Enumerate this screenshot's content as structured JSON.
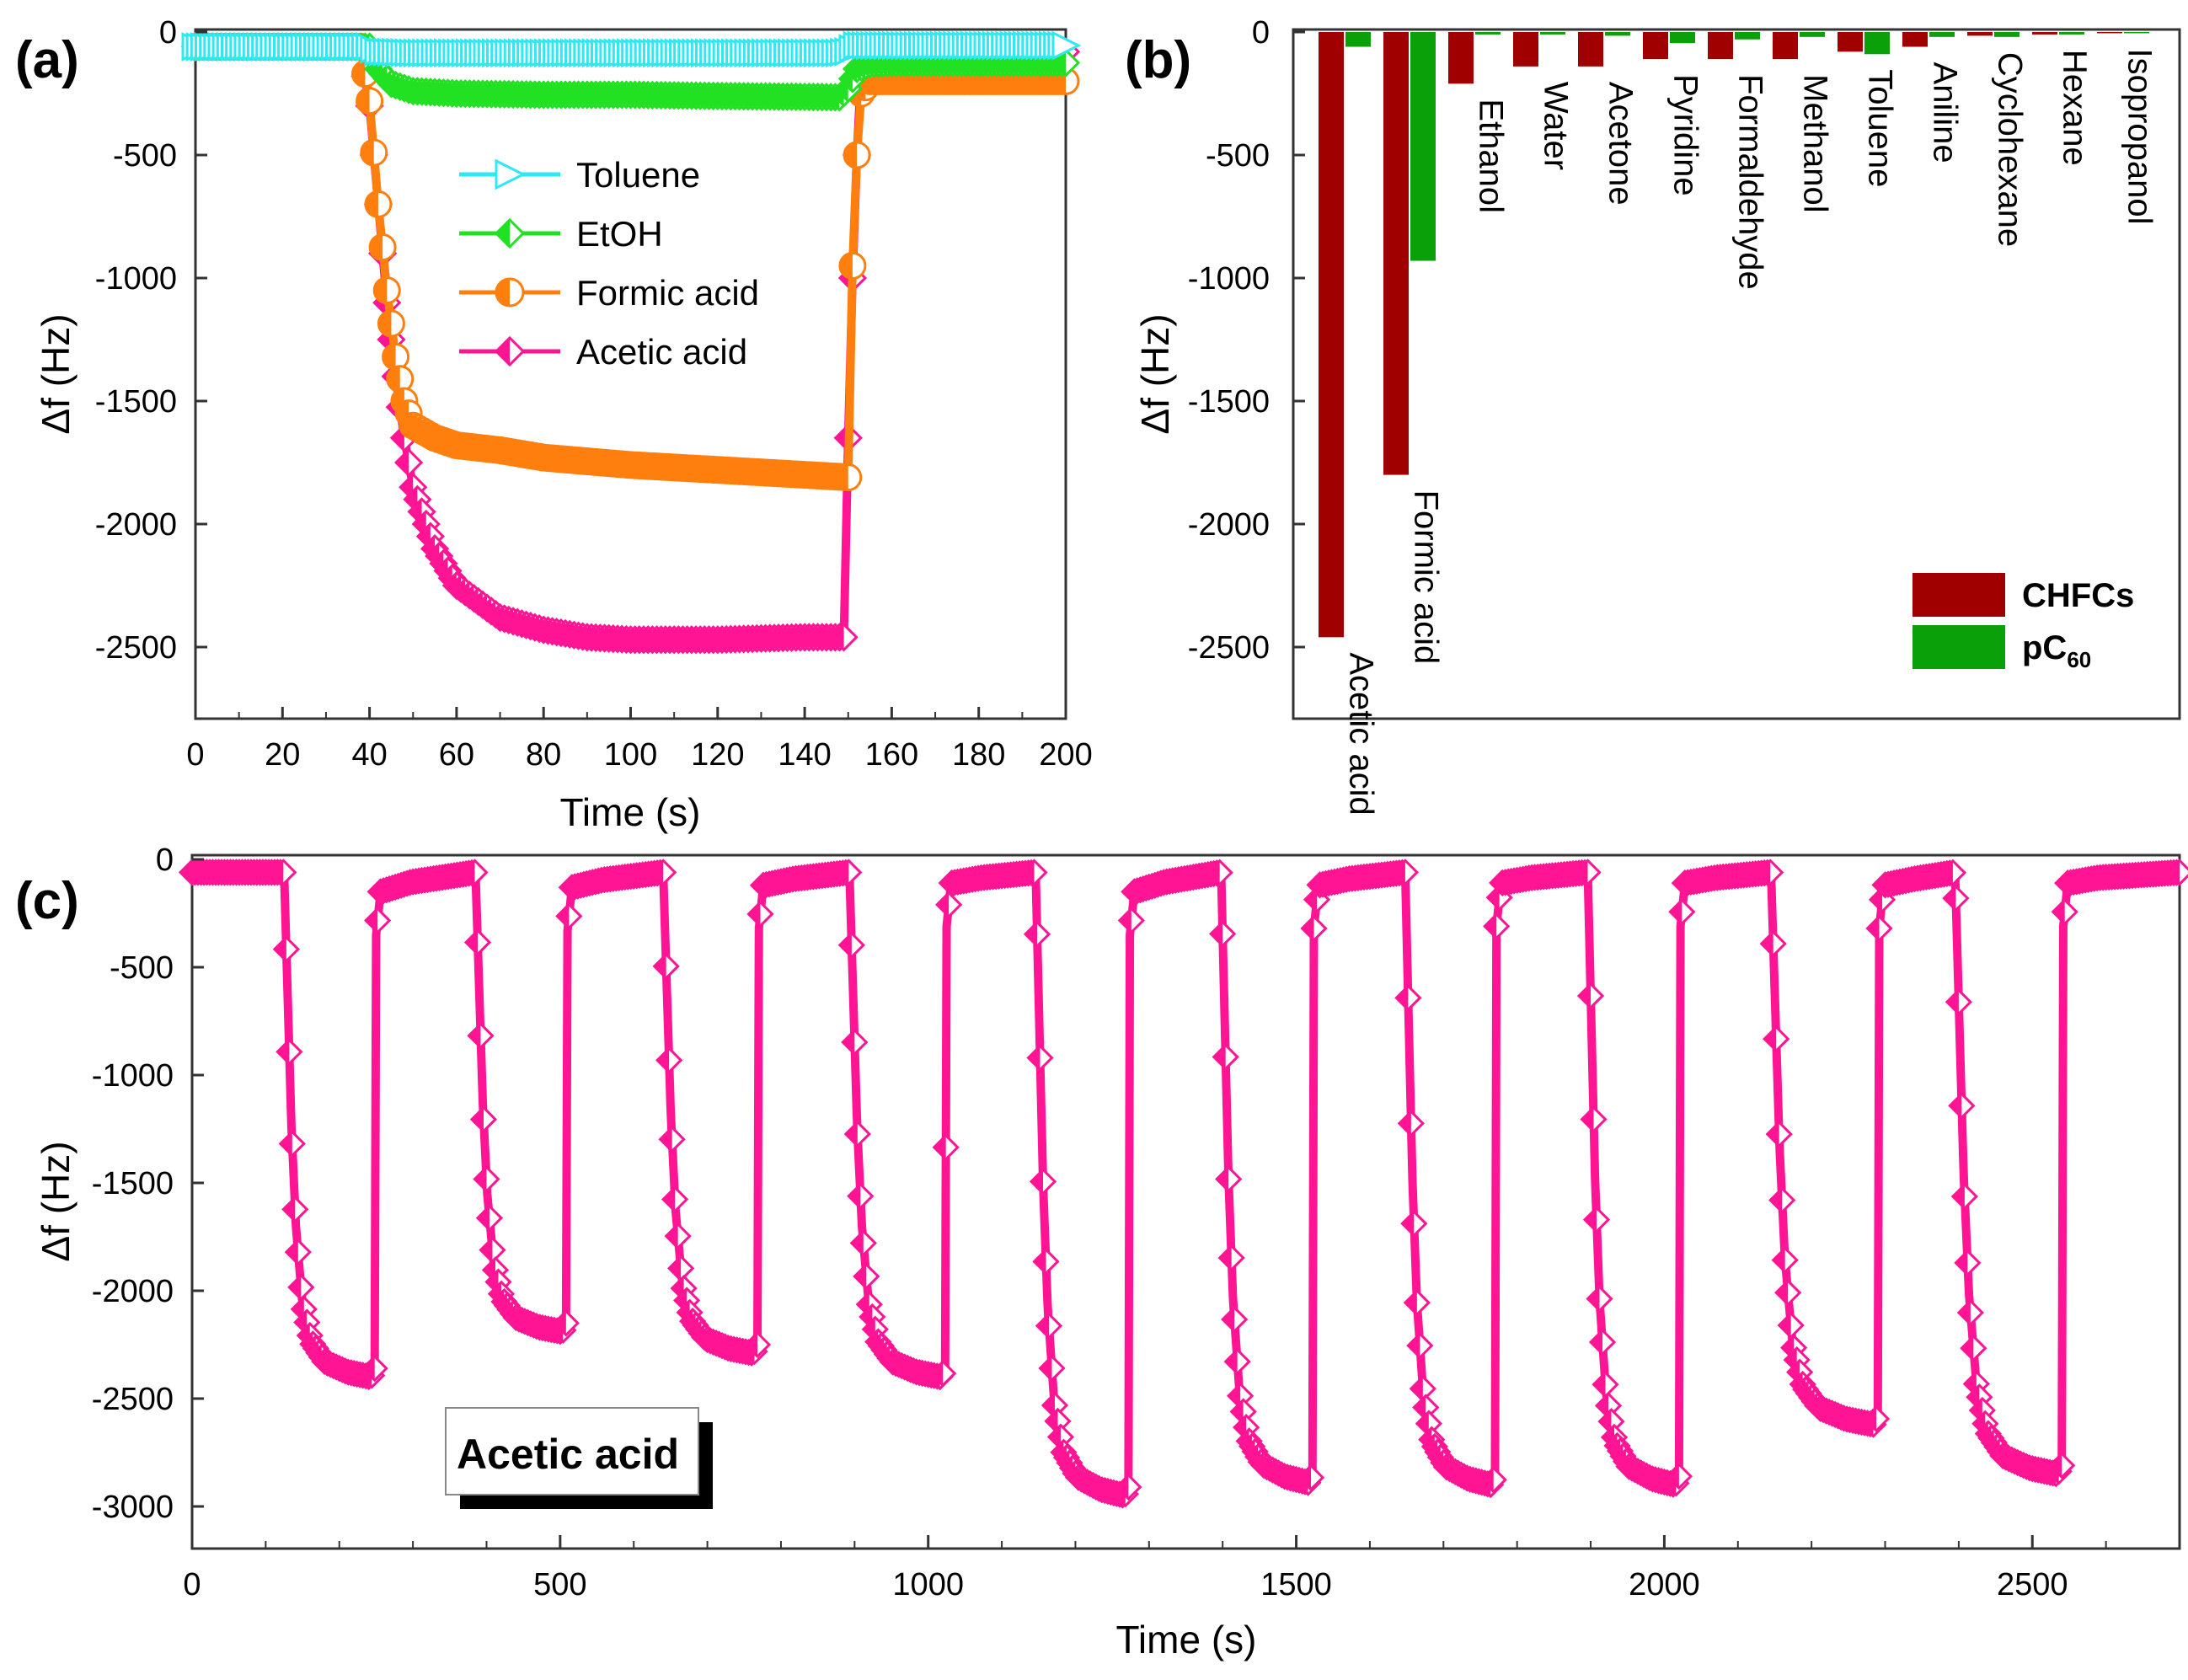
{
  "panels": {
    "a": {
      "label": "(a)"
    },
    "b": {
      "label": "(b)"
    },
    "c": {
      "label": "(c)"
    }
  },
  "chart_data": [
    {
      "id": "a",
      "type": "line",
      "xlabel": "Time (s)",
      "ylabel": "Δf (Hz)",
      "xlim": [
        0,
        200
      ],
      "ylim": [
        -2800,
        0
      ],
      "xticks": [
        0,
        20,
        40,
        60,
        80,
        100,
        120,
        140,
        160,
        180,
        200
      ],
      "yticks": [
        0,
        -500,
        -1000,
        -1500,
        -2000,
        -2500
      ],
      "legend_position": "top-center",
      "series": [
        {
          "name": "Toluene",
          "color": "#2ee8f2",
          "marker": "triangle-right",
          "x": [
            0,
            40,
            42,
            50,
            100,
            148,
            150,
            152,
            160,
            200
          ],
          "y": [
            -60,
            -60,
            -80,
            -85,
            -85,
            -85,
            -80,
            -55,
            -55,
            -55
          ]
        },
        {
          "name": "EtOH",
          "color": "#22e022",
          "marker": "diamond-half",
          "x": [
            0,
            40,
            42,
            45,
            50,
            60,
            80,
            100,
            120,
            148,
            150,
            152,
            155,
            160,
            180,
            200
          ],
          "y": [
            -60,
            -60,
            -150,
            -210,
            -240,
            -250,
            -255,
            -255,
            -260,
            -265,
            -230,
            -150,
            -130,
            -125,
            -125,
            -125
          ]
        },
        {
          "name": "Formic acid",
          "color": "#ff7f0e",
          "marker": "circle-half",
          "x": [
            0,
            38,
            40,
            42,
            44,
            46,
            48,
            50,
            55,
            60,
            70,
            80,
            100,
            120,
            140,
            150,
            151,
            152,
            153,
            155,
            160,
            180,
            200
          ],
          "y": [
            -60,
            -60,
            -280,
            -700,
            -1050,
            -1320,
            -1500,
            -1600,
            -1650,
            -1680,
            -1700,
            -1730,
            -1760,
            -1780,
            -1800,
            -1810,
            -950,
            -500,
            -250,
            -200,
            -200,
            -200,
            -200
          ]
        },
        {
          "name": "Acetic acid",
          "color": "#ff1493",
          "marker": "diamond-half",
          "x": [
            0,
            38,
            40,
            42,
            44,
            46,
            48,
            50,
            55,
            60,
            70,
            80,
            90,
            100,
            120,
            140,
            149,
            150,
            151,
            152,
            153,
            155,
            200
          ],
          "y": [
            -60,
            -60,
            -300,
            -700,
            -1100,
            -1400,
            -1650,
            -1850,
            -2100,
            -2250,
            -2380,
            -2430,
            -2460,
            -2470,
            -2470,
            -2460,
            -2460,
            -1650,
            -1000,
            -500,
            -150,
            -80,
            -80
          ]
        }
      ]
    },
    {
      "id": "b",
      "type": "bar",
      "ylabel": "Δf (Hz)",
      "ylim": [
        -2800,
        0
      ],
      "yticks": [
        0,
        -500,
        -1000,
        -1500,
        -2000,
        -2500
      ],
      "categories": [
        "Acetic acid",
        "Formic acid",
        "Ethanol",
        "Water",
        "Acetone",
        "Pyridine",
        "Formaldehyde",
        "Methanol",
        "Toluene",
        "Aniline",
        "Cyclohexane",
        "Hexane",
        "Isopropanol"
      ],
      "legend_position": "bottom-right",
      "series": [
        {
          "name": "CHFCs",
          "color": "#a00000",
          "values": [
            -2460,
            -1800,
            -210,
            -140,
            -140,
            -110,
            -110,
            -110,
            -80,
            -60,
            -15,
            -10,
            -5
          ]
        },
        {
          "name": "pC",
          "name_sub": "60",
          "color": "#0aa00a",
          "values": [
            -60,
            -930,
            -10,
            -10,
            -15,
            -45,
            -30,
            -20,
            -90,
            -20,
            -20,
            -10,
            -5
          ]
        }
      ]
    },
    {
      "id": "c",
      "type": "line",
      "xlabel": "Time (s)",
      "ylabel": "Δf (Hz)",
      "xlim": [
        0,
        2700
      ],
      "ylim": [
        -3200,
        0
      ],
      "xticks": [
        0,
        500,
        1000,
        1500,
        2000,
        2500
      ],
      "yticks": [
        0,
        -500,
        -1000,
        -1500,
        -2000,
        -2500,
        -3000
      ],
      "annotation": "Acetic acid",
      "color": "#ff1493",
      "baseline": -60,
      "cycles": [
        {
          "start": 125,
          "end": 248,
          "min": -2400,
          "recover": -150
        },
        {
          "start": 385,
          "end": 508,
          "min": -2190,
          "recover": -130
        },
        {
          "start": 640,
          "end": 768,
          "min": -2290,
          "recover": -120
        },
        {
          "start": 893,
          "end": 1023,
          "min": -2400,
          "recover": -110
        },
        {
          "start": 1146,
          "end": 1272,
          "min": -2950,
          "recover": -150
        },
        {
          "start": 1398,
          "end": 1522,
          "min": -2890,
          "recover": -120
        },
        {
          "start": 1648,
          "end": 1770,
          "min": -2900,
          "recover": -110
        },
        {
          "start": 1896,
          "end": 2020,
          "min": -2900,
          "recover": -110
        },
        {
          "start": 2145,
          "end": 2290,
          "min": -2620,
          "recover": -120
        },
        {
          "start": 2395,
          "end": 2540,
          "min": -2850,
          "recover": -110
        }
      ]
    }
  ]
}
